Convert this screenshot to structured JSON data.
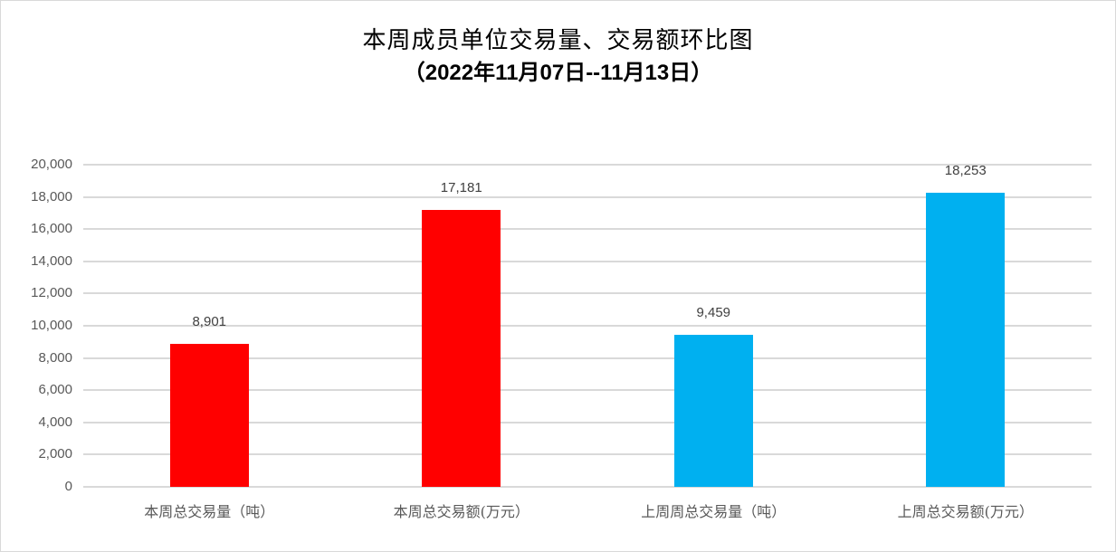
{
  "chart": {
    "title_line1": "本周成员单位交易量、交易额环比图",
    "title_line2": "（2022年11月07日--11月13日）"
  },
  "chart_data": {
    "type": "bar",
    "title": "本周成员单位交易量、交易额环比图（2022年11月07日--11月13日）",
    "categories": [
      "本周总交易量（吨）",
      "本周总交易额(万元）",
      "上周周总交易量（吨）",
      "上周总交易额(万元）"
    ],
    "values": [
      8901,
      17181,
      9459,
      18253
    ],
    "value_labels": [
      "8,901",
      "17,181",
      "9,459",
      "18,253"
    ],
    "bar_colors": [
      "#ff0000",
      "#ff0000",
      "#00b0f0",
      "#00b0f0"
    ],
    "xlabel": "",
    "ylabel": "",
    "ylim": [
      0,
      20000
    ],
    "yticks": [
      "0",
      "2,000",
      "4,000",
      "6,000",
      "8,000",
      "10,000",
      "12,000",
      "14,000",
      "16,000",
      "18,000",
      "20,000"
    ],
    "grid": true,
    "legend": "none"
  }
}
